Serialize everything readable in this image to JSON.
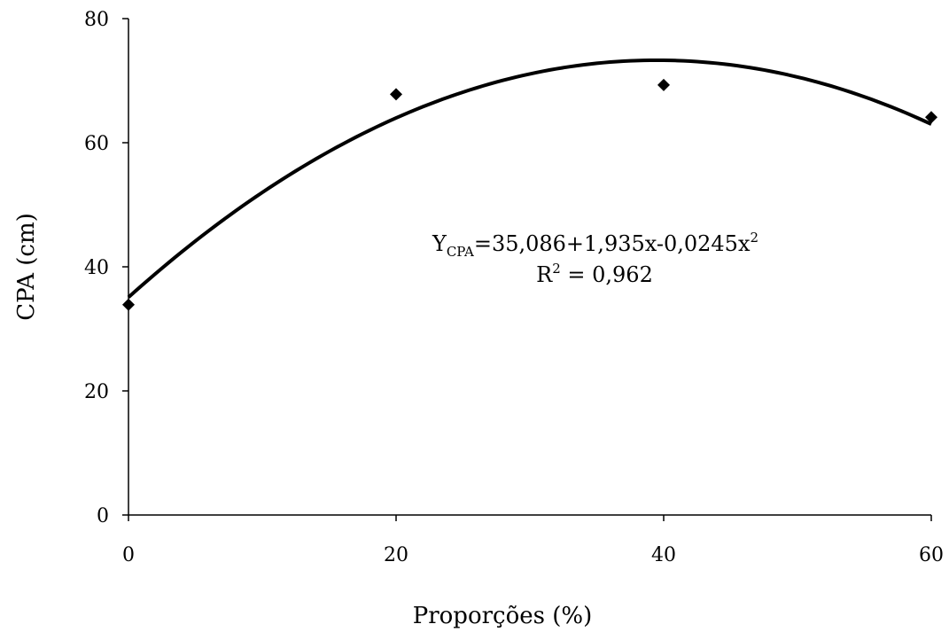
{
  "chart_data": {
    "type": "scatter",
    "title": "",
    "xlabel": "Proporções (%)",
    "ylabel": "CPA (cm)",
    "xlim": [
      0,
      60
    ],
    "ylim": [
      0,
      80
    ],
    "x_ticks": [
      0,
      20,
      40,
      60
    ],
    "y_ticks": [
      0,
      20,
      40,
      60,
      80
    ],
    "grid": false,
    "legend": "none",
    "series": [
      {
        "marker": "diamond",
        "color": "#000000",
        "x": [
          0,
          20,
          40,
          60
        ],
        "y": [
          33.9,
          67.8,
          69.3,
          64.1
        ]
      }
    ],
    "trendline": {
      "type": "quadratic",
      "color": "#000000",
      "coefficients": [
        35.086,
        1.935,
        -0.0245
      ]
    },
    "annotations": {
      "equation_y": "Y",
      "equation_subscript": "CPA",
      "equation_body": "=35,086+1,935x-0,0245x",
      "equation_exp": "2",
      "r2_prefix": "R",
      "r2_exp": "2",
      "r2_value": " = 0,962"
    }
  }
}
